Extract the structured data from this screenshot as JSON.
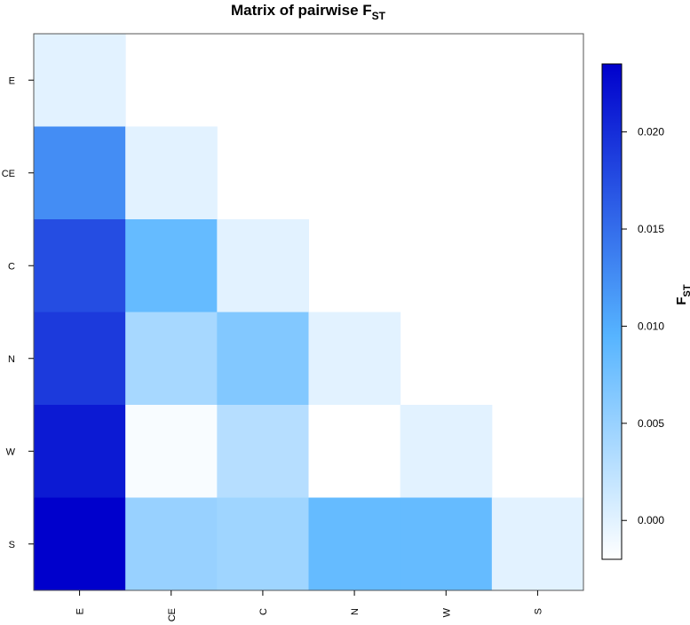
{
  "chart_data": {
    "type": "heatmap",
    "title": "Matrix of pairwise F",
    "title_subscript": "ST",
    "row_labels": [
      "E",
      "CE",
      "C",
      "N",
      "W",
      "S"
    ],
    "col_labels": [
      "E",
      "CE",
      "C",
      "N",
      "W",
      "S"
    ],
    "values": [
      [
        0.0,
        null,
        null,
        null,
        null,
        null
      ],
      [
        0.0125,
        0.0,
        null,
        null,
        null,
        null
      ],
      [
        0.0175,
        0.0085,
        0.0,
        null,
        null,
        null
      ],
      [
        0.019,
        0.004,
        0.0065,
        0.0,
        null,
        null
      ],
      [
        0.0215,
        -0.0015,
        0.003,
        -0.002,
        0.0,
        null
      ],
      [
        0.0235,
        0.005,
        0.0045,
        0.0085,
        0.0085,
        0.0
      ]
    ],
    "lower_triangle_only": true,
    "colorbar": {
      "label": "F",
      "label_subscript": "ST",
      "ticks": [
        "0.000",
        "0.005",
        "0.010",
        "0.015",
        "0.020"
      ],
      "tick_values": [
        0.0,
        0.005,
        0.01,
        0.015,
        0.02
      ],
      "range": [
        -0.002,
        0.0235
      ],
      "colors": [
        "#ffffff",
        "#56b4ff",
        "#0000cc"
      ],
      "color_stops": [
        -0.002,
        0.0095,
        0.0235
      ]
    }
  }
}
